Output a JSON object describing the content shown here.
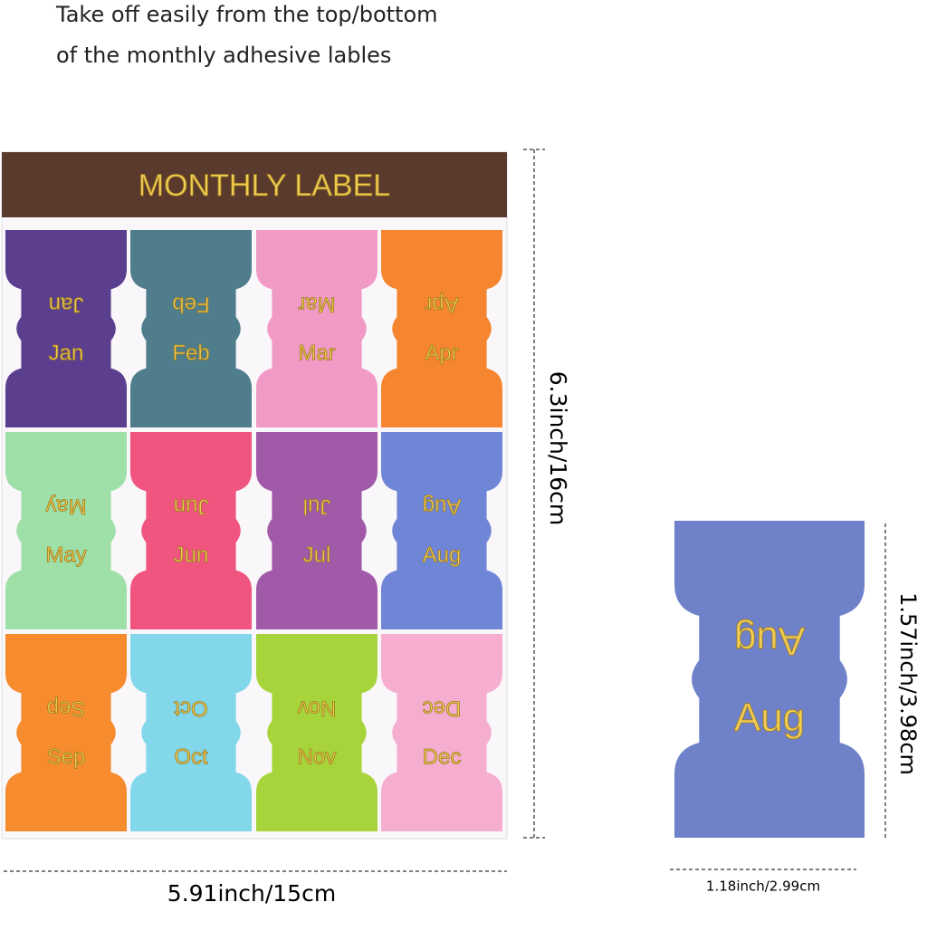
{
  "caption": [
    "Take off easily from the top/bottom",
    "of the monthly adhesive lables"
  ],
  "sheet": {
    "title": "MONTHLY LABEL",
    "labels": [
      {
        "text": "Jan",
        "color": "#5b3f8e"
      },
      {
        "text": "Feb",
        "color": "#4f7d8c"
      },
      {
        "text": "Mar",
        "color": "#f19ac6"
      },
      {
        "text": "Apr",
        "color": "#f5862f"
      },
      {
        "text": "May",
        "color": "#9ee0a8"
      },
      {
        "text": "Jun",
        "color": "#f0557f"
      },
      {
        "text": "Jul",
        "color": "#a05aa8"
      },
      {
        "text": "Aug",
        "color": "#6f86d6"
      },
      {
        "text": "Sep",
        "color": "#f68c2e"
      },
      {
        "text": "Oct",
        "color": "#82d8ea"
      },
      {
        "text": "Nov",
        "color": "#a7d43a"
      },
      {
        "text": "Dec",
        "color": "#f6aed0"
      }
    ]
  },
  "sample": {
    "text": "Aug",
    "color": "#6f82c9"
  },
  "dimensions": {
    "sheet_height": "6.3inch/16cm",
    "sheet_width": "5.91inch/15cm",
    "label_height": "1.57inch/3.98cm",
    "label_width": "1.18inch/2.99cm"
  }
}
